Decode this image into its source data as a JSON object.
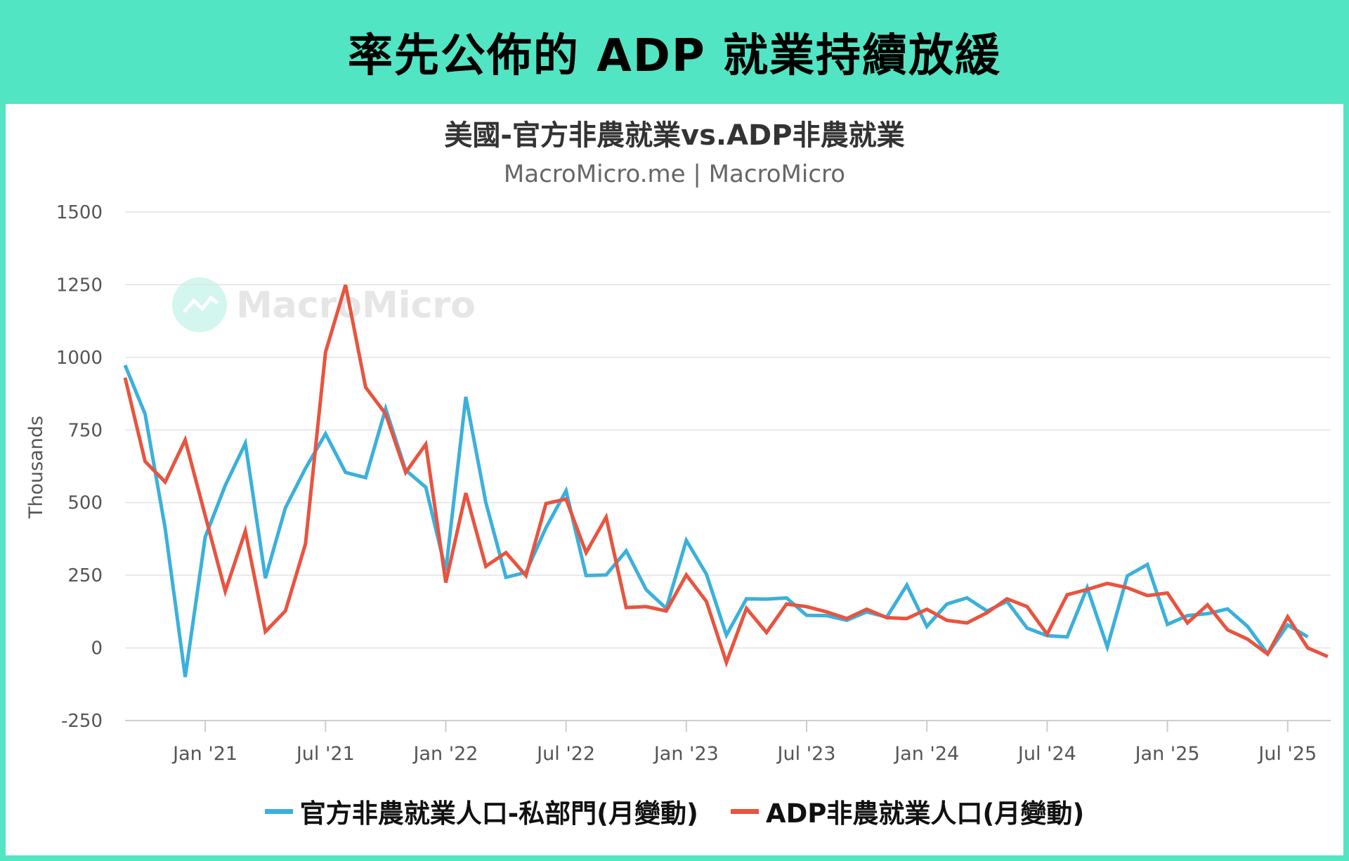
{
  "header": {
    "title": "率先公佈的 ADP 就業持續放緩"
  },
  "watermark": "MacroMicro",
  "chart_data": {
    "type": "line",
    "title": "美國-官方非農就業vs.ADP非農就業",
    "subtitle": "MacroMicro.me | MacroMicro",
    "ylabel": "Thousands",
    "ylim": [
      -250,
      1500
    ],
    "yticks": [
      1500,
      1250,
      1000,
      750,
      500,
      250,
      0,
      -250
    ],
    "xticks": [
      "Jan '21",
      "Jul '21",
      "Jan '22",
      "Jul '22",
      "Jan '23",
      "Jul '23",
      "Jan '24",
      "Jul '24",
      "Jan '25",
      "Jul '25"
    ],
    "x_start": "2020-09",
    "x_end": "2025-09",
    "grid": true,
    "legend_position": "bottom",
    "series": [
      {
        "name": "官方非農就業人口-私部門(月變動)",
        "color": "#3bb0dc",
        "start": "2020-09",
        "values": [
          973,
          805,
          411,
          -100,
          382,
          559,
          704,
          240,
          482,
          618,
          737,
          604,
          586,
          823,
          612,
          553,
          266,
          864,
          500,
          243,
          260,
          414,
          541,
          249,
          251,
          334,
          200,
          136,
          370,
          254,
          44,
          169,
          168,
          172,
          112,
          111,
          95,
          124,
          106,
          216,
          74,
          151,
          172,
          127,
          160,
          68,
          42,
          38,
          207,
          3,
          248,
          287,
          81,
          111,
          118,
          134,
          74,
          -20,
          79,
          38
        ]
      },
      {
        "name": "ADP非農就業人口(月變動)",
        "color": "#e8543f",
        "start": "2020-09",
        "values": [
          930,
          642,
          571,
          716,
          455,
          195,
          402,
          56,
          127,
          358,
          1018,
          1249,
          897,
          805,
          604,
          701,
          225,
          533,
          281,
          328,
          249,
          497,
          512,
          328,
          450,
          139,
          142,
          127,
          251,
          160,
          -50,
          136,
          53,
          151,
          142,
          124,
          101,
          133,
          104,
          101,
          133,
          95,
          86,
          121,
          169,
          142,
          47,
          183,
          201,
          222,
          207,
          180,
          189,
          86,
          148,
          62,
          30,
          -21,
          107,
          0,
          -30
        ]
      }
    ]
  }
}
